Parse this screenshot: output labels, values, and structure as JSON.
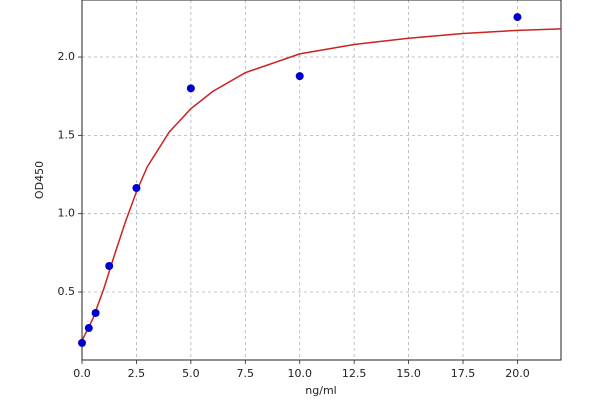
{
  "chart_data": {
    "type": "scatter",
    "xlabel": "ng/ml",
    "ylabel": "OD450",
    "xlim": [
      0,
      22
    ],
    "ylim": [
      0.066,
      2.364
    ],
    "xticks": [
      {
        "value": 0,
        "label": "0.0"
      },
      2.5,
      {
        "value": 5,
        "label": "5.0"
      },
      7.5,
      {
        "value": 10,
        "label": "10.0"
      },
      12.5,
      {
        "value": 15,
        "label": "15.0"
      },
      17.5,
      {
        "value": 20,
        "label": "20.0"
      }
    ],
    "yticks": [
      0.5,
      {
        "value": 1,
        "label": "1.0"
      },
      1.5,
      {
        "value": 2,
        "label": "2.0"
      }
    ],
    "grid": true,
    "series": [
      {
        "type": "line",
        "color": "#cc2222",
        "x": [
          0,
          0.5,
          1,
          1.5,
          2,
          2.5,
          3,
          4,
          5,
          6,
          7.5,
          10,
          12.5,
          15,
          17.5,
          20,
          22
        ],
        "values": [
          0.19,
          0.33,
          0.52,
          0.74,
          0.95,
          1.14,
          1.3,
          1.52,
          1.67,
          1.78,
          1.9,
          2.02,
          2.08,
          2.12,
          2.15,
          2.17,
          2.18
        ]
      },
      {
        "type": "scatter",
        "color": "#0000cc",
        "x": [
          0,
          0.3125,
          0.625,
          1.25,
          2.5,
          5,
          10,
          20
        ],
        "values": [
          0.175,
          0.27,
          0.366,
          0.666,
          1.164,
          1.8,
          1.878,
          2.255
        ]
      }
    ]
  }
}
